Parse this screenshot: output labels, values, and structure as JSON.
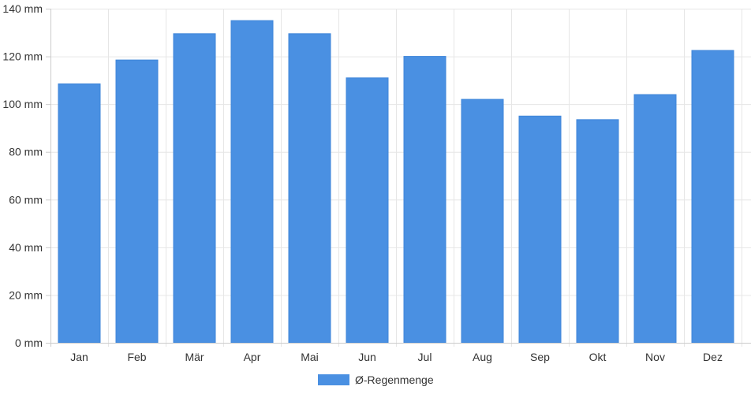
{
  "chart_data": {
    "type": "bar",
    "categories": [
      "Jan",
      "Feb",
      "Mär",
      "Apr",
      "Mai",
      "Jun",
      "Jul",
      "Aug",
      "Sep",
      "Okt",
      "Nov",
      "Dez"
    ],
    "series": [
      {
        "name": "Ø-Regenmenge",
        "values": [
          108.5,
          118.5,
          129.5,
          135,
          129.5,
          111,
          120,
          102,
          95,
          93.5,
          104,
          122.5
        ],
        "color": "#4a90e2"
      }
    ],
    "ylim": [
      0,
      140
    ],
    "yticks": [
      0,
      20,
      40,
      60,
      80,
      100,
      120,
      140
    ],
    "y_unit": "mm",
    "grid": true,
    "legend_position": "bottom-center"
  }
}
